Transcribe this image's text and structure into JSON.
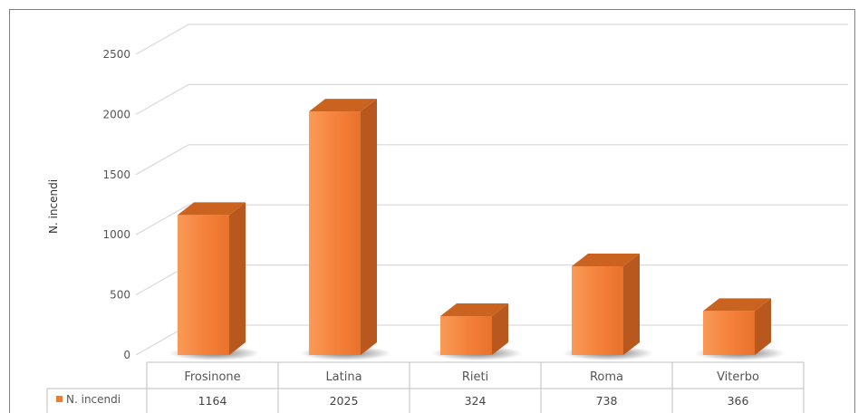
{
  "chart_data": {
    "type": "bar",
    "style": "3d-column-with-data-table",
    "categories": [
      "Frosinone",
      "Latina",
      "Rieti",
      "Roma",
      "Viterbo"
    ],
    "series": [
      {
        "name": "N. incendi",
        "values": [
          1164,
          2025,
          324,
          738,
          366
        ]
      }
    ],
    "ylabel": "N. incendi",
    "xlabel": "",
    "title": "",
    "ylim": [
      0,
      2500
    ],
    "yticks": [
      0,
      500,
      1000,
      1500,
      2000,
      2500
    ],
    "grid": true,
    "legend": "data-table-left",
    "colors": {
      "bar_front": "#F4803A",
      "bar_front_light": "#F99A57",
      "bar_side": "#B8581F",
      "bar_top": "#C9631F",
      "grid": "#d9d9d9",
      "frame": "#7f7f7f",
      "legend_key": "#ED7D31"
    }
  }
}
